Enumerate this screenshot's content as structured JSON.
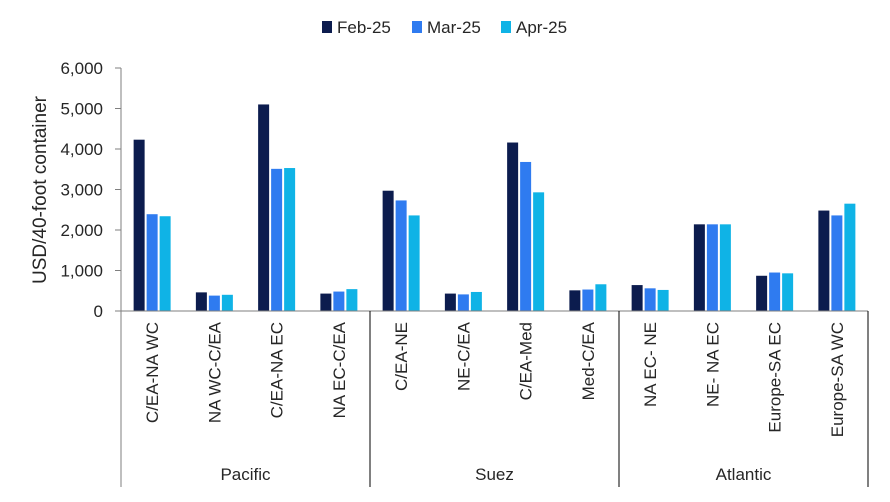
{
  "chart_data": {
    "type": "bar",
    "title": "",
    "xlabel": "",
    "ylabel": "USD/40-foot container",
    "ylim": [
      0,
      6000
    ],
    "yticks": [
      0,
      1000,
      2000,
      3000,
      4000,
      5000,
      6000
    ],
    "ytick_labels": [
      "0",
      "1,000",
      "2,000",
      "3,000",
      "4,000",
      "5,000",
      "6,000"
    ],
    "legend_position": "top-center",
    "grid": false,
    "categories": [
      "C/EA-NA WC",
      "NA WC-C/EA",
      "C/EA-NA EC",
      "NA EC-C/EA",
      "C/EA-NE",
      "NE-C/EA",
      "C/EA-Med",
      "Med-C/EA",
      "NA EC- NE",
      "NE- NA EC",
      "Europe-SA EC",
      "Europe-SA WC"
    ],
    "groups": [
      {
        "label": "Pacific",
        "count": 4
      },
      {
        "label": "Suez",
        "count": 4
      },
      {
        "label": "Atlantic",
        "count": 4
      }
    ],
    "series": [
      {
        "name": "Feb-25",
        "color": "#0c1c4e",
        "values": [
          4230,
          460,
          5100,
          430,
          2970,
          430,
          4160,
          510,
          640,
          2140,
          870,
          2480
        ]
      },
      {
        "name": "Mar-25",
        "color": "#2f7bf0",
        "values": [
          2390,
          380,
          3510,
          480,
          2730,
          410,
          3680,
          530,
          560,
          2140,
          950,
          2360
        ]
      },
      {
        "name": "Apr-25",
        "color": "#0fb3e6",
        "values": [
          2340,
          400,
          3530,
          540,
          2360,
          470,
          2930,
          660,
          520,
          2140,
          930,
          2650
        ]
      }
    ]
  }
}
